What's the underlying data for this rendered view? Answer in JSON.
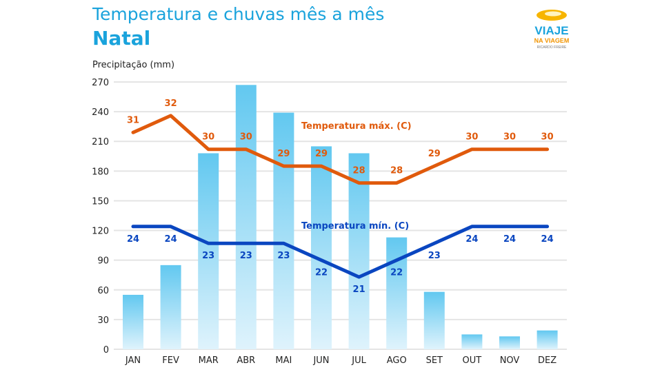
{
  "header": {
    "title": "Temperatura e chuvas mês a mês",
    "subtitle": "Natal",
    "logo_text": [
      "VIAJE",
      "NA VIAGEM",
      "RICARDO FREIRE"
    ]
  },
  "chart_data": {
    "type": "bar",
    "title": "Temperatura e chuvas mês a mês",
    "subtitle": "Natal",
    "ylabel": "Precipitação (mm)",
    "ylim": [
      0,
      270
    ],
    "yticks": [
      0,
      30,
      60,
      90,
      120,
      150,
      180,
      210,
      240,
      270
    ],
    "grid": true,
    "categories": [
      "JAN",
      "FEV",
      "MAR",
      "ABR",
      "MAI",
      "JUN",
      "JUL",
      "AGO",
      "SET",
      "OUT",
      "NOV",
      "DEZ"
    ],
    "precipitation_mm": [
      55,
      85,
      198,
      267,
      239,
      205,
      198,
      113,
      58,
      15,
      13,
      19
    ],
    "series": [
      {
        "name": "Temperatura máx. (C)",
        "type": "line",
        "color": "#e05a0c",
        "values": [
          31,
          32,
          30,
          30,
          29,
          29,
          28,
          28,
          29,
          30,
          30,
          30
        ]
      },
      {
        "name": "Temperatura mín. (C)",
        "type": "line",
        "color": "#0a46c0",
        "values": [
          24,
          24,
          23,
          23,
          23,
          22,
          21,
          22,
          23,
          24,
          24,
          24
        ]
      }
    ],
    "colors": {
      "bar_top": "#62c8f0",
      "bar_bottom": "#dff3fc",
      "title": "#1aa3dc"
    }
  }
}
